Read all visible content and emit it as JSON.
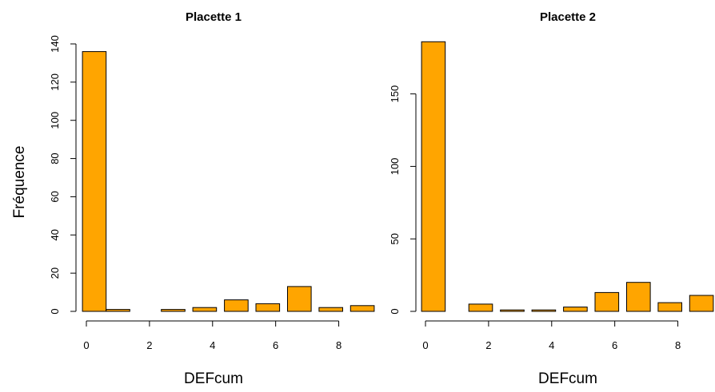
{
  "figure": {
    "ylabel": "Fréquence"
  },
  "chart_data": [
    {
      "type": "bar",
      "title": "Placette 1",
      "xlabel": "DEFcum",
      "ylabel": "Fréquence",
      "bin_width": 0.75,
      "x": [
        0.25,
        1.0,
        1.75,
        2.75,
        3.75,
        4.75,
        5.75,
        6.75,
        7.75,
        8.75
      ],
      "values": [
        136,
        1,
        0,
        1,
        2,
        6,
        4,
        13,
        2,
        3
      ],
      "xlim": [
        0,
        9
      ],
      "ylim": [
        0,
        140
      ],
      "xticks": [
        0,
        2,
        4,
        6,
        8
      ],
      "yticks": [
        0,
        20,
        40,
        60,
        80,
        100,
        120,
        140
      ],
      "bar_color": "#FFA500",
      "grid": false
    },
    {
      "type": "bar",
      "title": "Placette 2",
      "xlabel": "DEFcum",
      "ylabel": "",
      "bin_width": 0.75,
      "x": [
        0.25,
        1.75,
        2.75,
        3.75,
        4.75,
        5.75,
        6.75,
        7.75,
        8.75
      ],
      "values": [
        186,
        5,
        1,
        1,
        3,
        13,
        20,
        6,
        11
      ],
      "xlim": [
        0,
        9
      ],
      "ylim": [
        0,
        190
      ],
      "xticks": [
        0,
        2,
        4,
        6,
        8
      ],
      "yticks": [
        0,
        50,
        100,
        150
      ],
      "bar_color": "#FFA500",
      "grid": false
    }
  ]
}
